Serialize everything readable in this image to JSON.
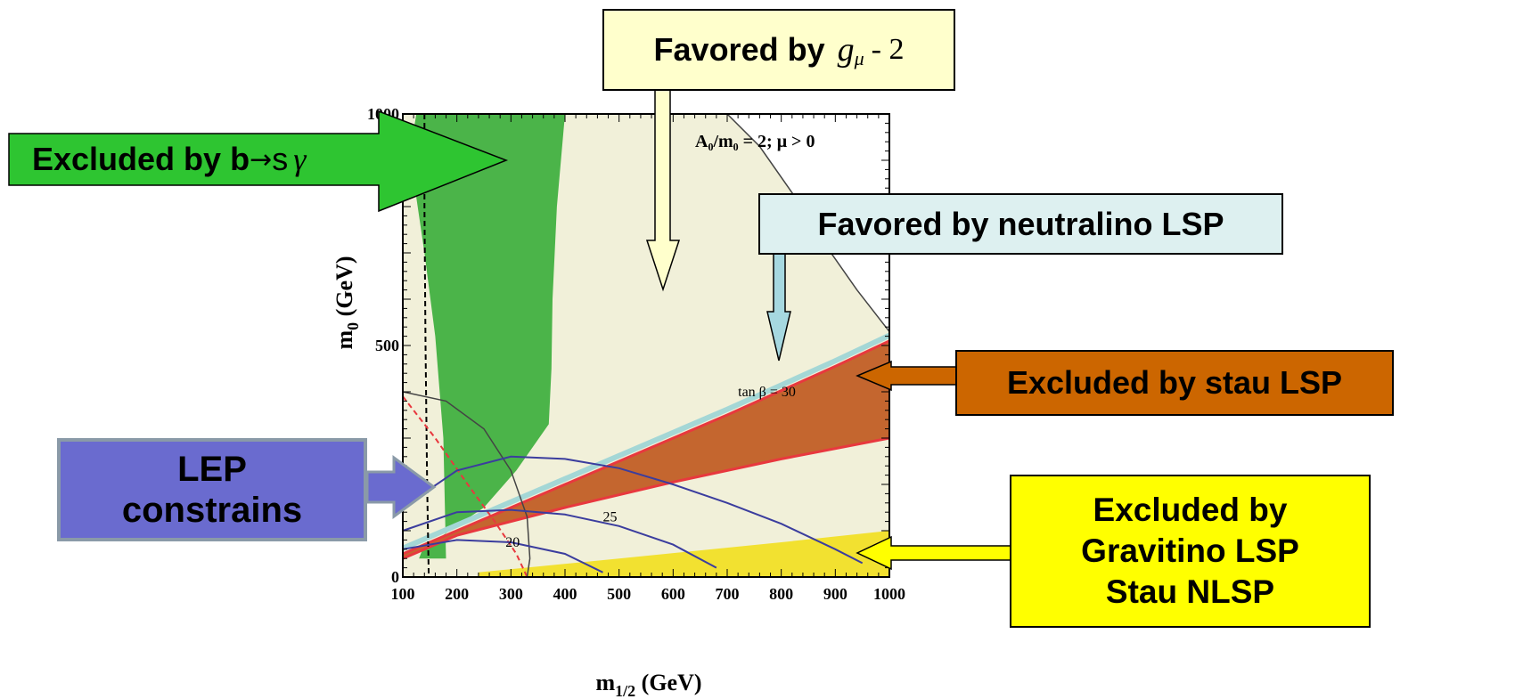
{
  "chart_data": {
    "type": "area",
    "title": "",
    "xlabel_base": "m",
    "xlabel_sub": "1/2",
    "xlabel_unit": "(GeV)",
    "ylabel_base": "m",
    "ylabel_sub": "0",
    "ylabel_unit": "(GeV)",
    "xlim": [
      100,
      1000
    ],
    "ylim": [
      0,
      1000
    ],
    "xticks": [
      "100",
      "200",
      "300",
      "400",
      "500",
      "600",
      "700",
      "800",
      "900",
      "1000"
    ],
    "yticks": [
      "0",
      "500",
      "1000"
    ],
    "inset_label": "A₀/m₀ = 2; μ > 0",
    "regions": {
      "gminus2_favored": {
        "color": "#f1f0d9",
        "points": [
          [
            100,
            1000
          ],
          [
            700,
            1000
          ],
          [
            760,
            930
          ],
          [
            820,
            830
          ],
          [
            880,
            720
          ],
          [
            940,
            620
          ],
          [
            990,
            545
          ],
          [
            1000,
            530
          ],
          [
            1000,
            0
          ],
          [
            100,
            0
          ]
        ]
      },
      "bsgamma_excluded": {
        "color": "#4bb449",
        "points": [
          [
            125,
            1000
          ],
          [
            400,
            1000
          ],
          [
            385,
            800
          ],
          [
            377,
            600
          ],
          [
            375,
            450
          ],
          [
            370,
            330
          ],
          [
            310,
            230
          ],
          [
            250,
            150
          ],
          [
            180,
            95
          ],
          [
            135,
            55
          ],
          [
            130,
            40
          ],
          [
            180,
            40
          ],
          [
            175,
            300
          ],
          [
            160,
            520
          ],
          [
            140,
            700
          ],
          [
            120,
            860
          ],
          [
            118,
            950
          ]
        ]
      },
      "stau_lsp_excluded": {
        "color": "#c4662f",
        "points": [
          [
            100,
            50
          ],
          [
            300,
            150
          ],
          [
            500,
            250
          ],
          [
            700,
            350
          ],
          [
            900,
            455
          ],
          [
            1000,
            510
          ],
          [
            1000,
            300
          ],
          [
            800,
            255
          ],
          [
            600,
            205
          ],
          [
            400,
            150
          ],
          [
            200,
            90
          ],
          [
            100,
            40
          ]
        ]
      },
      "gravitino_excluded": {
        "color": "#f2e130",
        "points": [
          [
            240,
            10
          ],
          [
            500,
            40
          ],
          [
            800,
            75
          ],
          [
            1000,
            100
          ],
          [
            1000,
            0
          ],
          [
            240,
            0
          ]
        ]
      },
      "neutralino_band": {
        "color": "#a4d7d6"
      }
    },
    "contours": [
      {
        "label": "tan β = 30",
        "color": "#3b3d9e",
        "points": [
          [
            100,
            150
          ],
          [
            200,
            230
          ],
          [
            300,
            260
          ],
          [
            400,
            255
          ],
          [
            500,
            235
          ],
          [
            600,
            200
          ],
          [
            700,
            160
          ],
          [
            800,
            115
          ],
          [
            900,
            60
          ],
          [
            950,
            30
          ]
        ]
      },
      {
        "label": "25",
        "color": "#3b3d9e",
        "points": [
          [
            100,
            100
          ],
          [
            200,
            140
          ],
          [
            300,
            145
          ],
          [
            400,
            135
          ],
          [
            500,
            110
          ],
          [
            600,
            70
          ],
          [
            680,
            20
          ]
        ]
      },
      {
        "label": "20",
        "color": "#3b3d9e",
        "points": [
          [
            100,
            60
          ],
          [
            200,
            80
          ],
          [
            300,
            75
          ],
          [
            400,
            50
          ],
          [
            470,
            10
          ]
        ]
      }
    ],
    "contour_label_positions": [
      [
        720,
        390
      ],
      [
        470,
        120
      ],
      [
        290,
        65
      ]
    ]
  },
  "callouts": {
    "gm2": {
      "pre": "Favored by",
      "g": "g",
      "mu": "μ",
      "post": "- 2"
    },
    "bsg": {
      "pre": "Excluded by b",
      "arrow": "→",
      "s": "s",
      "gamma": "γ"
    },
    "neutralino": {
      "text": "Favored by neutralino LSP"
    },
    "stau": {
      "text": "Excluded by stau LSP"
    },
    "lep": {
      "line1": "LEP",
      "line2": "constrains"
    },
    "gravitino": {
      "line1": "Excluded by",
      "line2": "Gravitino LSP",
      "line3": "Stau NLSP"
    }
  },
  "colors": {
    "favored_gm2_box": "#ffffcc",
    "bsg_arrow": "#2ec531",
    "neutralino_box": "#ddf0f0",
    "stau_box": "#cc6600",
    "lep_box": "#6a6bcf",
    "gravitino_box": "#ffff00",
    "red_boundary": "#e8383e"
  }
}
